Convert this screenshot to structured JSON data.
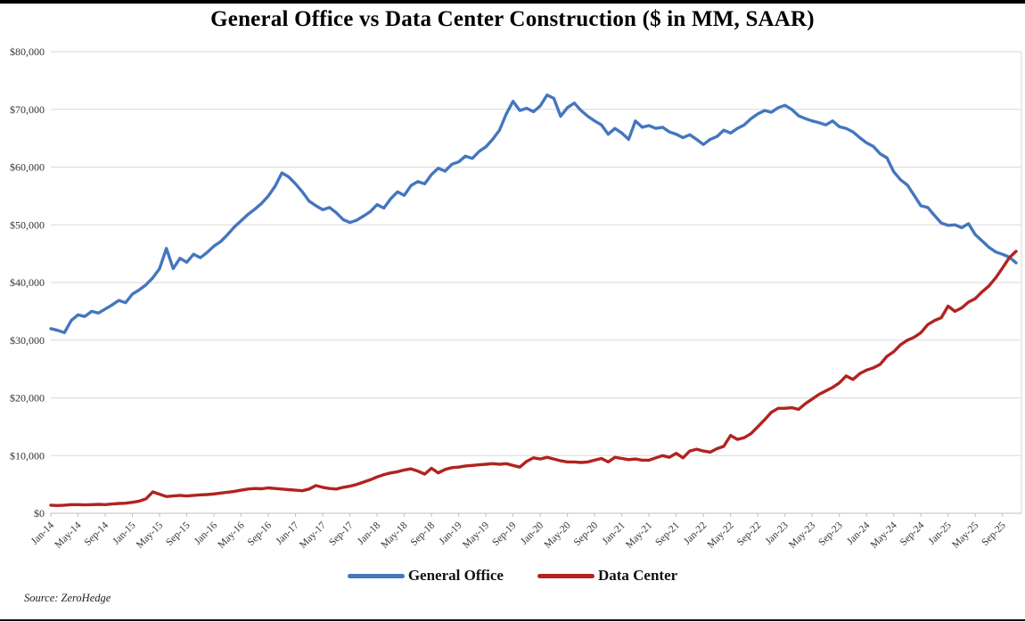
{
  "page": {
    "title": "General Office vs Data Center Construction ($ in MM, SAAR)",
    "source_note": "Source: ZeroHedge"
  },
  "chart_data": {
    "type": "line",
    "title": "General Office vs Data Center Construction ($ in MM, SAAR)",
    "xlabel": "",
    "ylabel": "",
    "x_frequency": "monthly",
    "x_start": "Jan-14",
    "x_end": "Nov-25",
    "x_tick_labels": [
      "Jan-14",
      "May-14",
      "Sep-14",
      "Jan-15",
      "May-15",
      "Sep-15",
      "Jan-16",
      "May-16",
      "Sep-16",
      "Jan-17",
      "May-17",
      "Sep-17",
      "Jan-18",
      "May-18",
      "Sep-18",
      "Jan-19",
      "May-19",
      "Sep-19",
      "Jan-20",
      "May-20",
      "Sep-20",
      "Jan-21",
      "May-21",
      "Sep-21",
      "Jan-22",
      "May-22",
      "Sep-22",
      "Jan-23",
      "May-23",
      "Sep-23",
      "Jan-24",
      "May-24",
      "Sep-24",
      "Jan-25",
      "May-25",
      "Sep-25"
    ],
    "x_tick_interval_months": 4,
    "y_tick_labels": [
      "$0",
      "$10,000",
      "$20,000",
      "$30,000",
      "$40,000",
      "$50,000",
      "$60,000",
      "$70,000",
      "$80,000"
    ],
    "ylim": [
      0,
      80000
    ],
    "y_step": 10000,
    "grid": "horizontal",
    "legend_position": "bottom",
    "series": [
      {
        "name": "General Office",
        "color": "#4576BE",
        "values": [
          32000,
          31700,
          31300,
          33400,
          34400,
          34100,
          35000,
          34700,
          35400,
          36100,
          36900,
          36500,
          38000,
          38700,
          39600,
          40800,
          42400,
          45900,
          42400,
          44200,
          43500,
          44900,
          44300,
          45200,
          46300,
          47100,
          48300,
          49600,
          50700,
          51800,
          52700,
          53700,
          55000,
          56700,
          59000,
          58300,
          57100,
          55700,
          54100,
          53300,
          52600,
          53000,
          52100,
          50900,
          50400,
          50800,
          51500,
          52300,
          53500,
          52900,
          54500,
          55700,
          55100,
          56800,
          57500,
          57100,
          58700,
          59800,
          59300,
          60500,
          60900,
          61900,
          61500,
          62700,
          63500,
          64800,
          66400,
          69200,
          71400,
          69800,
          70200,
          69600,
          70600,
          72500,
          71900,
          68800,
          70300,
          71100,
          69800,
          68800,
          68000,
          67300,
          65700,
          66700,
          65900,
          64800,
          68000,
          66900,
          67200,
          66700,
          66900,
          66100,
          65700,
          65100,
          65600,
          64800,
          63900,
          64800,
          65300,
          66400,
          65900,
          66700,
          67300,
          68400,
          69200,
          69800,
          69500,
          70300,
          70700,
          70000,
          68900,
          68400,
          68000,
          67700,
          67300,
          68000,
          67000,
          66700,
          66100,
          65100,
          64200,
          63600,
          62300,
          61600,
          59200,
          57800,
          56900,
          55100,
          53300,
          53000,
          51600,
          50300,
          49900,
          50000,
          49500,
          50200,
          48300,
          47200,
          46100,
          45300,
          44900,
          44400,
          43400
        ]
      },
      {
        "name": "Data Center",
        "color": "#B12320",
        "values": [
          1400,
          1350,
          1400,
          1500,
          1500,
          1450,
          1500,
          1550,
          1500,
          1600,
          1700,
          1750,
          1900,
          2100,
          2500,
          3700,
          3300,
          2900,
          3000,
          3100,
          3000,
          3100,
          3200,
          3250,
          3350,
          3500,
          3650,
          3800,
          4000,
          4200,
          4300,
          4250,
          4400,
          4300,
          4200,
          4100,
          4000,
          3900,
          4200,
          4800,
          4500,
          4300,
          4200,
          4500,
          4700,
          5000,
          5400,
          5800,
          6300,
          6700,
          7000,
          7200,
          7500,
          7700,
          7300,
          6800,
          7800,
          7000,
          7600,
          7900,
          8000,
          8200,
          8300,
          8400,
          8500,
          8600,
          8500,
          8600,
          8300,
          8000,
          9000,
          9600,
          9400,
          9700,
          9400,
          9100,
          8900,
          8900,
          8800,
          8900,
          9200,
          9500,
          8900,
          9700,
          9500,
          9300,
          9400,
          9200,
          9200,
          9600,
          10000,
          9700,
          10400,
          9600,
          10800,
          11100,
          10800,
          10600,
          11200,
          11600,
          13500,
          12800,
          13100,
          13800,
          15000,
          16200,
          17500,
          18200,
          18200,
          18300,
          18000,
          19000,
          19800,
          20600,
          21200,
          21800,
          22600,
          23800,
          23200,
          24200,
          24800,
          25200,
          25800,
          27200,
          28000,
          29200,
          30000,
          30500,
          31300,
          32700,
          33400,
          33900,
          35900,
          35000,
          35600,
          36600,
          37200,
          38400,
          39400,
          40800,
          42500,
          44300,
          45400
        ]
      }
    ],
    "style": {
      "gridline_color": "#d9d9d9",
      "axis_color": "#bfbfbf",
      "tick_label_color": "#333333",
      "line_width": 3.4
    }
  }
}
